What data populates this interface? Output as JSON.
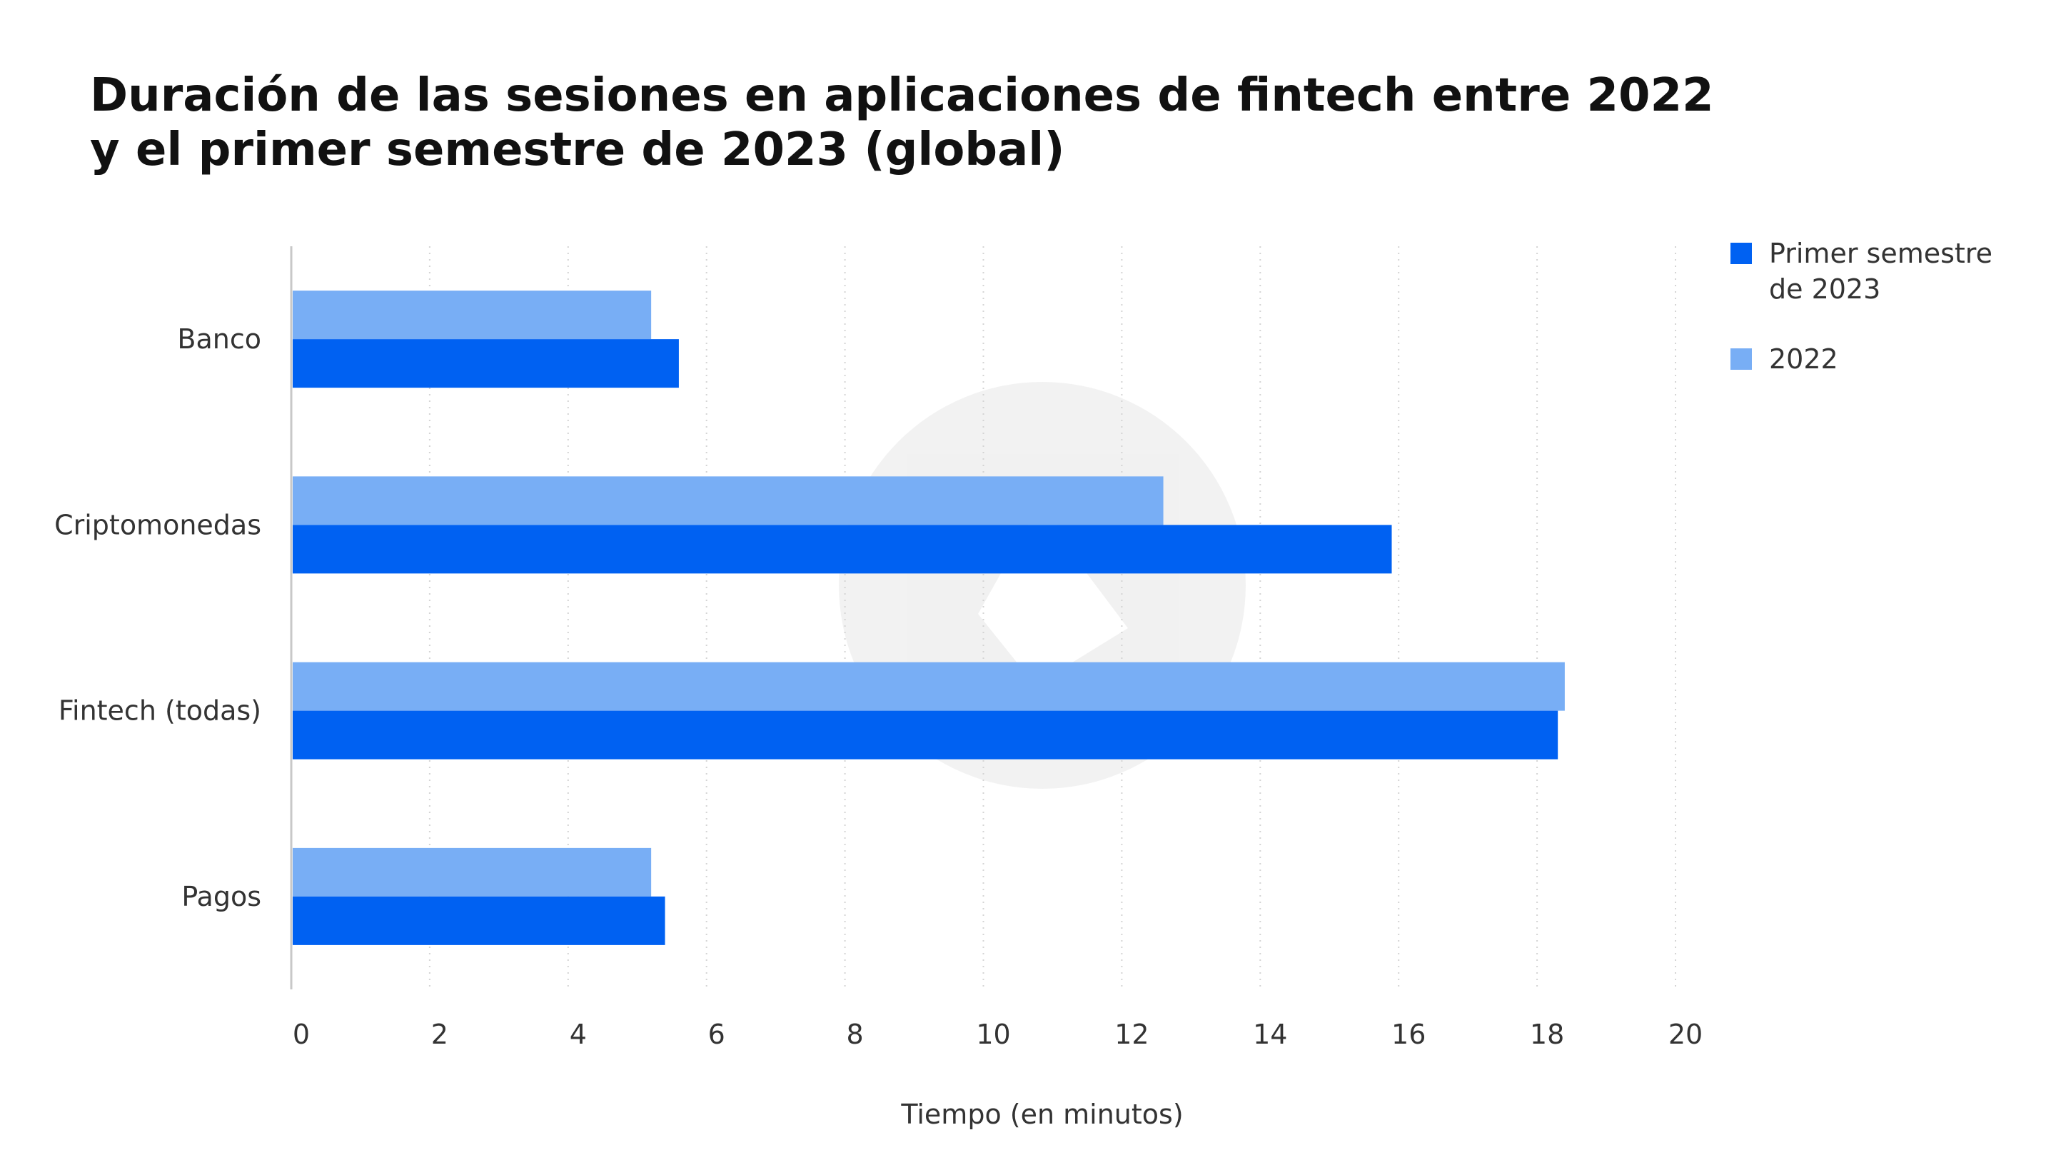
{
  "chart_data": {
    "type": "bar",
    "orientation": "horizontal",
    "title": "Duración de las sesiones en aplicaciones de fintech entre 2022 y el primer semestre de 2023 (global)",
    "xlabel": "Tiempo (en minutos)",
    "ylabel": "",
    "categories": [
      "Banco",
      "Criptomonedas",
      "Fintech (todas)",
      "Pagos"
    ],
    "series": [
      {
        "name": "2022",
        "color": "#78aef5",
        "values": [
          5.2,
          12.6,
          18.4,
          5.2
        ]
      },
      {
        "name": "Primer semestre de 2023",
        "color": "#0061f2",
        "values": [
          5.6,
          15.9,
          18.3,
          5.4
        ]
      }
    ],
    "xlim": [
      0,
      20
    ],
    "xticks": [
      "0",
      "2",
      "4",
      "6",
      "8",
      "10",
      "12",
      "14",
      "16",
      "18",
      "20"
    ],
    "grid": true,
    "legend": {
      "placement": "top-right",
      "entries": [
        {
          "name": "Primer semestre de 2023",
          "color": "#0061f2"
        },
        {
          "name": "2022",
          "color": "#78aef5"
        }
      ]
    }
  }
}
